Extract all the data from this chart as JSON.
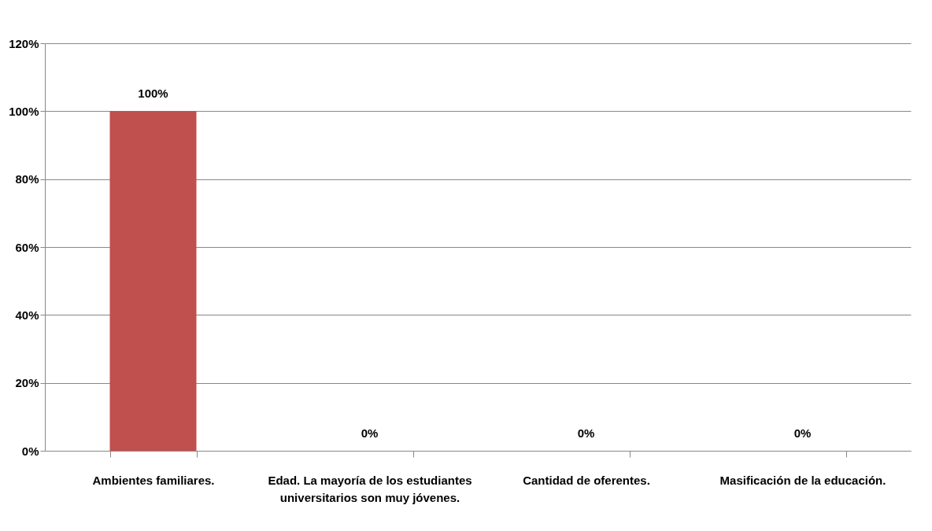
{
  "chart_data": {
    "type": "bar",
    "categories": [
      "Ambientes familiares.",
      "Edad. La mayoría de los estudiantes universitarios son muy jóvenes.",
      "Cantidad de oferentes.",
      "Masificación de la educación."
    ],
    "values": [
      100,
      0,
      0,
      0
    ],
    "value_labels": [
      "100%",
      "0%",
      "0%",
      "0%"
    ],
    "color": "#c0504d",
    "ylim": [
      0,
      120
    ],
    "yticks": [
      {
        "value": 0,
        "label": "0%"
      },
      {
        "value": 20,
        "label": "20%"
      },
      {
        "value": 40,
        "label": "40%"
      },
      {
        "value": 60,
        "label": "60%"
      },
      {
        "value": 80,
        "label": "80%"
      },
      {
        "value": 100,
        "label": "100%"
      },
      {
        "value": 120,
        "label": "120%"
      }
    ],
    "grid": "y"
  }
}
